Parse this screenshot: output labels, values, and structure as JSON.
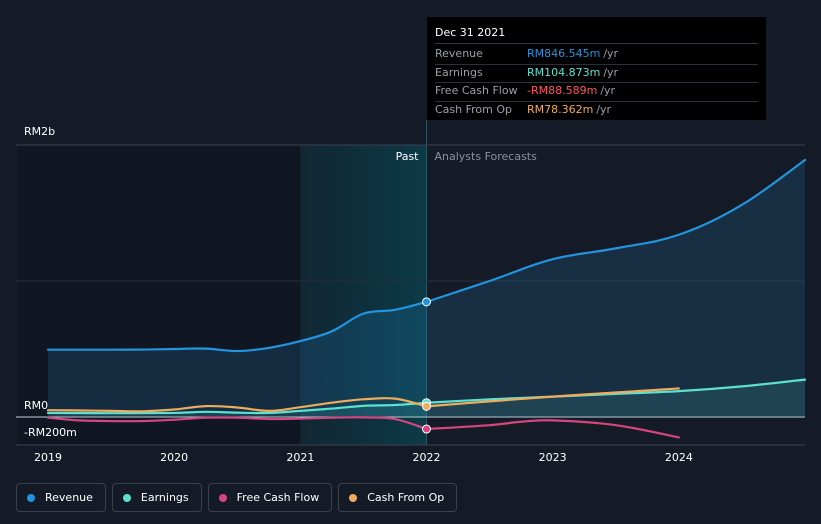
{
  "chart_data": {
    "type": "line",
    "x_ticks": [
      "2019",
      "2020",
      "2021",
      "2022",
      "2023",
      "2024"
    ],
    "xlim": [
      2019.0,
      2025.0
    ],
    "y_ticks": [
      {
        "value": 2000,
        "label": "RM2b"
      },
      {
        "value": 0,
        "label": "RM0"
      },
      {
        "value": -200,
        "label": "-RM200m"
      }
    ],
    "ylim": [
      -200,
      2000
    ],
    "past_label": "Past",
    "forecast_label": "Analysts Forecasts",
    "split_x": 2022.0,
    "series": [
      {
        "name": "Revenue",
        "color": "#2394df",
        "fill": true,
        "past": [
          [
            2019.0,
            495
          ],
          [
            2019.5,
            495
          ],
          [
            2019.75,
            496
          ],
          [
            2020.0,
            500
          ],
          [
            2020.25,
            503
          ],
          [
            2020.5,
            485
          ],
          [
            2020.75,
            508
          ],
          [
            2021.0,
            558
          ],
          [
            2021.25,
            630
          ],
          [
            2021.5,
            760
          ],
          [
            2021.75,
            788
          ],
          [
            2022.0,
            846.545
          ]
        ],
        "forecast": [
          [
            2022.0,
            846.545
          ],
          [
            2022.5,
            1000
          ],
          [
            2023.0,
            1160
          ],
          [
            2023.5,
            1240
          ],
          [
            2024.0,
            1340
          ],
          [
            2024.5,
            1560
          ],
          [
            2025.0,
            1890
          ]
        ]
      },
      {
        "name": "Earnings",
        "color": "#5ce1d0",
        "fill": true,
        "past": [
          [
            2019.0,
            30
          ],
          [
            2019.5,
            28
          ],
          [
            2020.0,
            30
          ],
          [
            2020.25,
            38
          ],
          [
            2020.5,
            32
          ],
          [
            2020.75,
            30
          ],
          [
            2021.0,
            45
          ],
          [
            2021.25,
            62
          ],
          [
            2021.5,
            82
          ],
          [
            2021.75,
            88
          ],
          [
            2022.0,
            104.873
          ]
        ],
        "forecast": [
          [
            2022.0,
            104.873
          ],
          [
            2022.5,
            130
          ],
          [
            2023.0,
            150
          ],
          [
            2023.5,
            170
          ],
          [
            2024.0,
            190
          ],
          [
            2024.5,
            225
          ],
          [
            2025.0,
            275
          ]
        ]
      },
      {
        "name": "Free Cash Flow",
        "color": "#d6457f",
        "fill": false,
        "past": [
          [
            2019.0,
            -5
          ],
          [
            2019.25,
            -25
          ],
          [
            2019.5,
            -30
          ],
          [
            2019.75,
            -30
          ],
          [
            2020.0,
            -20
          ],
          [
            2020.25,
            -5
          ],
          [
            2020.5,
            -5
          ],
          [
            2020.75,
            -15
          ],
          [
            2021.0,
            -12
          ],
          [
            2021.25,
            -5
          ],
          [
            2021.5,
            -3
          ],
          [
            2021.75,
            -15
          ],
          [
            2022.0,
            -88.589
          ]
        ],
        "forecast": [
          [
            2022.0,
            -88.589
          ],
          [
            2022.5,
            -60
          ],
          [
            2022.75,
            -35
          ],
          [
            2023.0,
            -25
          ],
          [
            2023.5,
            -60
          ],
          [
            2024.0,
            -150
          ]
        ]
      },
      {
        "name": "Cash From Op",
        "color": "#eeac5c",
        "fill": false,
        "past": [
          [
            2019.0,
            50
          ],
          [
            2019.25,
            48
          ],
          [
            2019.5,
            45
          ],
          [
            2019.75,
            42
          ],
          [
            2020.0,
            55
          ],
          [
            2020.25,
            80
          ],
          [
            2020.5,
            70
          ],
          [
            2020.75,
            45
          ],
          [
            2021.0,
            72
          ],
          [
            2021.25,
            105
          ],
          [
            2021.5,
            130
          ],
          [
            2021.75,
            135
          ],
          [
            2022.0,
            78.362
          ]
        ],
        "forecast": [
          [
            2022.0,
            78.362
          ],
          [
            2022.5,
            115
          ],
          [
            2023.0,
            150
          ],
          [
            2023.5,
            180
          ],
          [
            2024.0,
            210
          ]
        ]
      }
    ]
  },
  "tooltip": {
    "date": "Dec 31 2021",
    "rows": [
      {
        "label": "Revenue",
        "value": "RM846.545m",
        "unit": "/yr",
        "color": "#2394df"
      },
      {
        "label": "Earnings",
        "value": "RM104.873m",
        "unit": "/yr",
        "color": "#5ce1d0"
      },
      {
        "label": "Free Cash Flow",
        "value": "-RM88.589m",
        "unit": "/yr",
        "color": "#ff5560"
      },
      {
        "label": "Cash From Op",
        "value": "RM78.362m",
        "unit": "/yr",
        "color": "#eeac5c"
      }
    ]
  },
  "legend": [
    {
      "label": "Revenue",
      "color": "#2394df"
    },
    {
      "label": "Earnings",
      "color": "#5ce1d0"
    },
    {
      "label": "Free Cash Flow",
      "color": "#d6457f"
    },
    {
      "label": "Cash From Op",
      "color": "#eeac5c"
    }
  ]
}
